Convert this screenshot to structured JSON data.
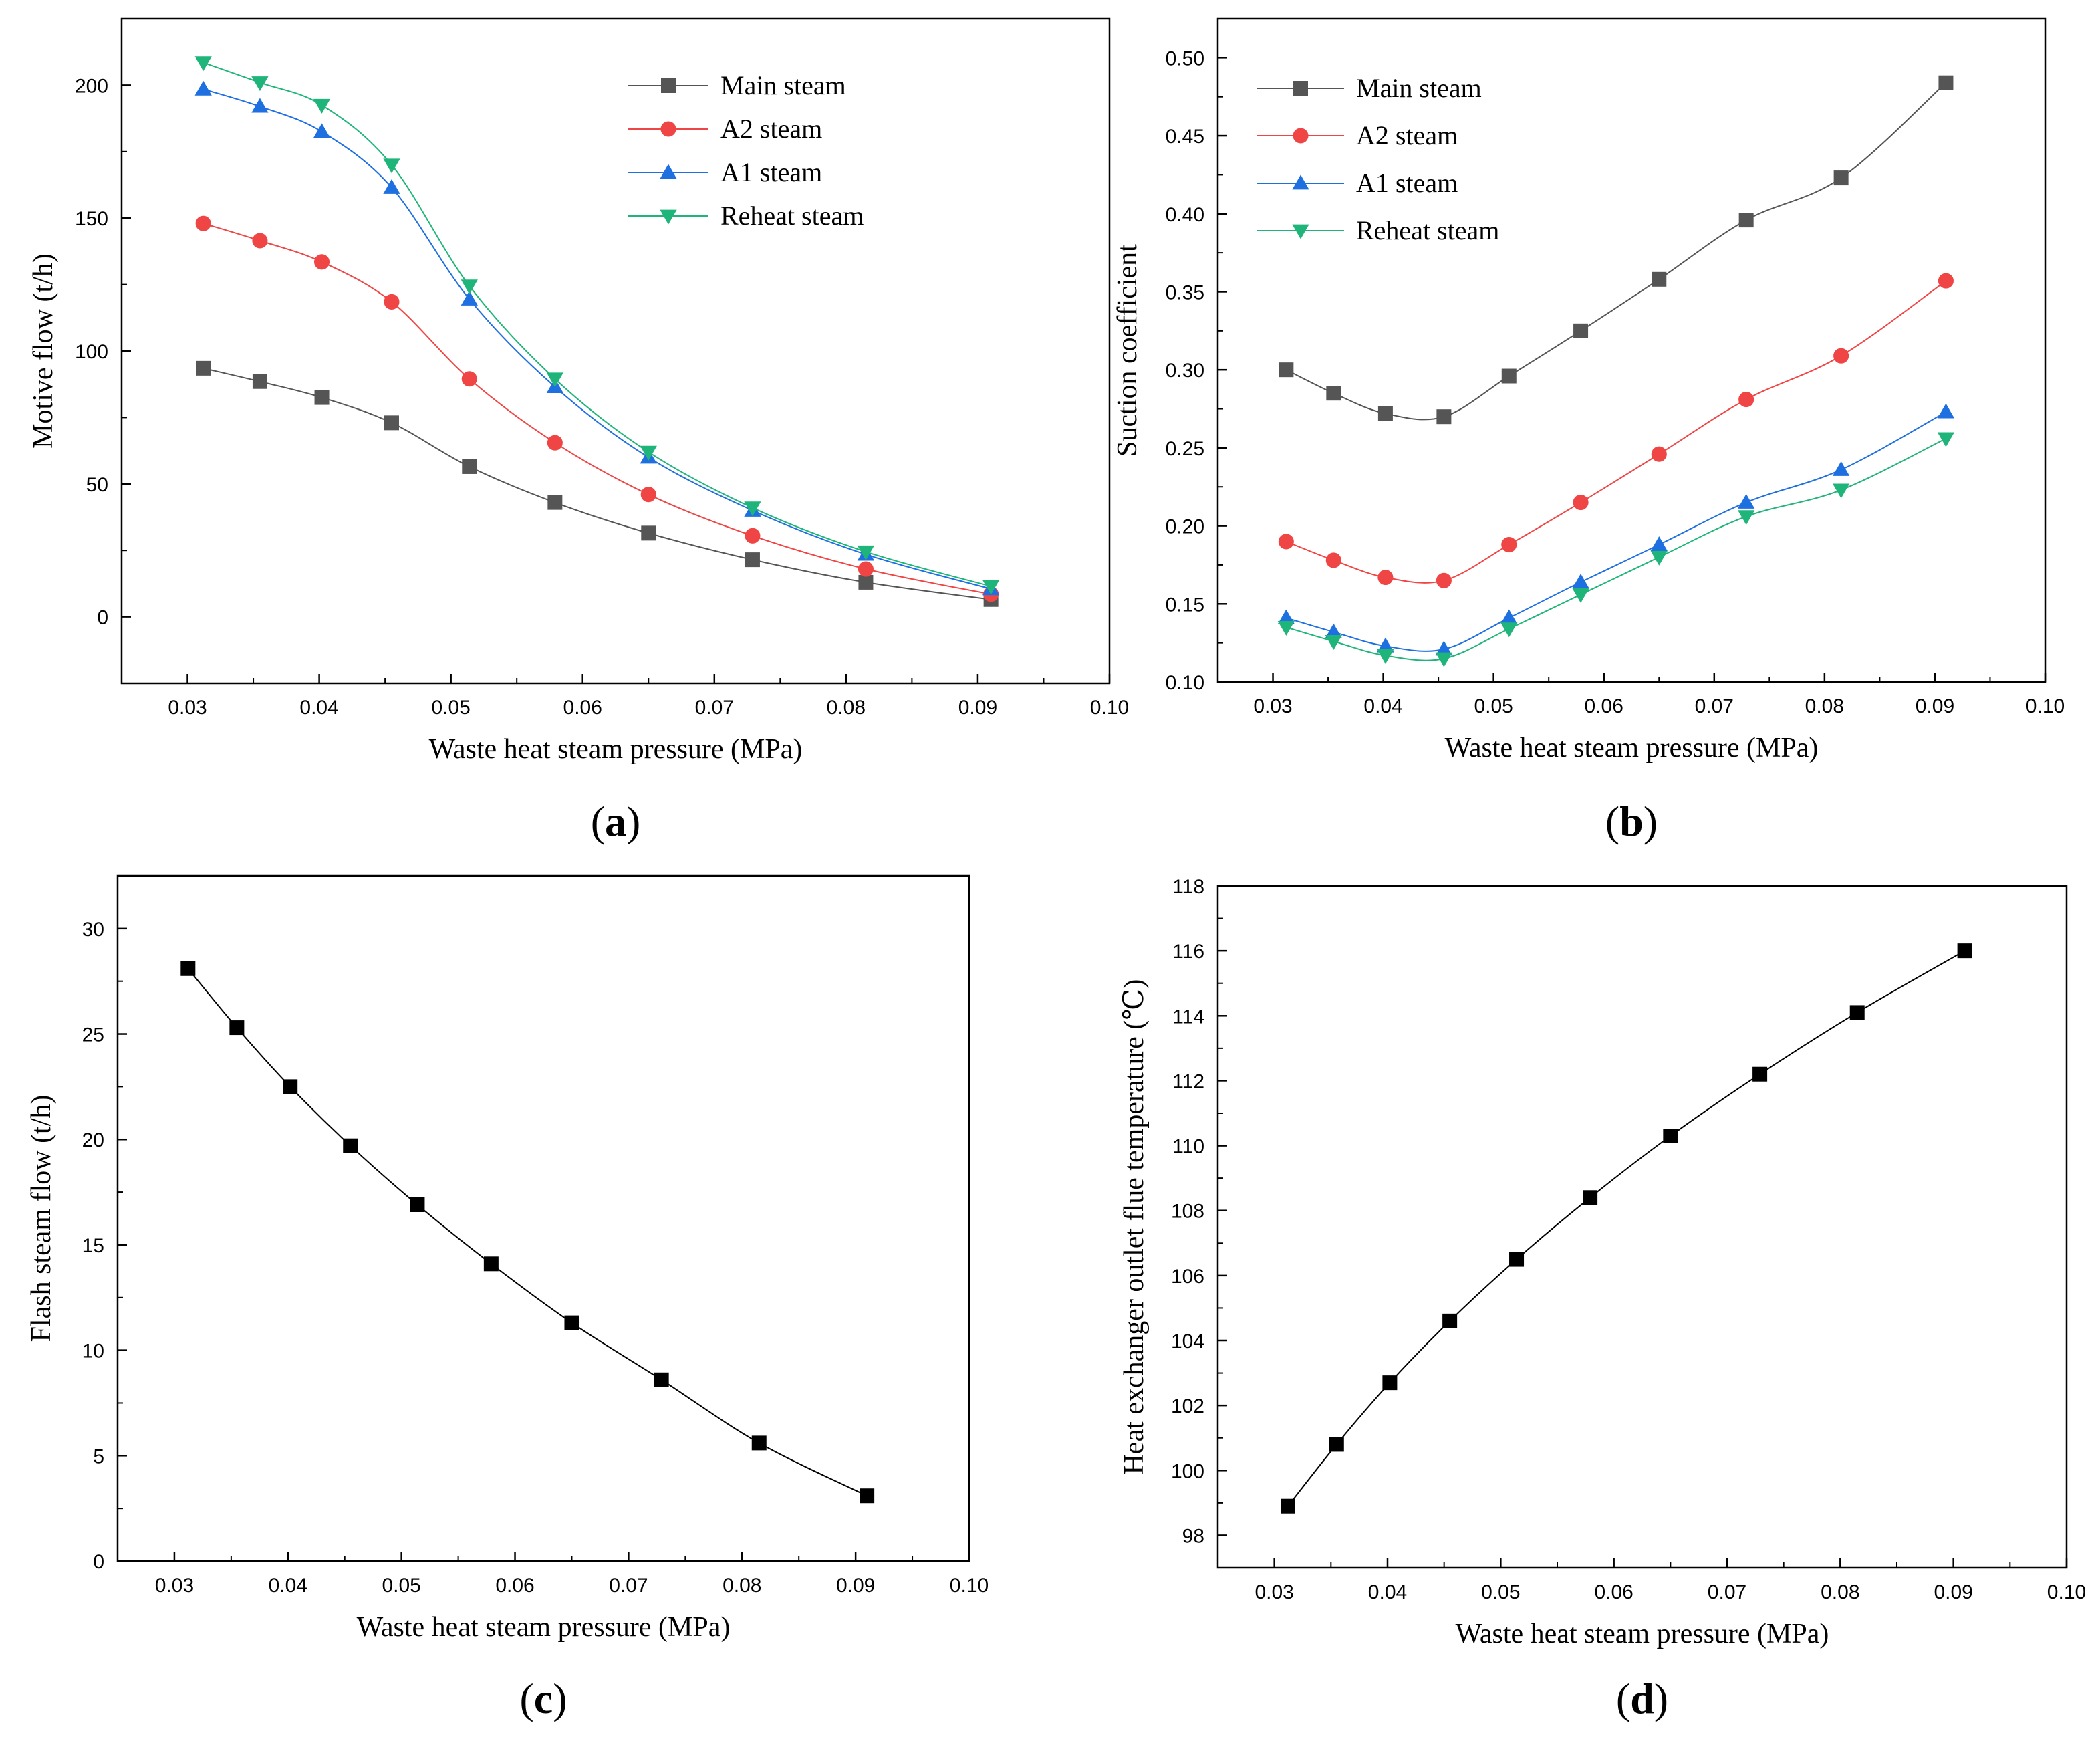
{
  "colors": {
    "main": "#555555",
    "a2": "#f04545",
    "a1": "#1e6fe0",
    "reheat": "#1fb57a",
    "black": "#000000"
  },
  "chart_data": [
    {
      "id": "a",
      "panel_label": "a",
      "type": "line",
      "xlabel": "Waste heat steam pressure (MPa)",
      "ylabel": "Motive flow (t/h)",
      "xlim": [
        0.025,
        0.1
      ],
      "ylim": [
        -25,
        225
      ],
      "xticks": [
        0.03,
        0.04,
        0.05,
        0.06,
        0.07,
        0.08,
        0.09,
        0.1
      ],
      "xtick_labels": [
        "0.03",
        "0.04",
        "0.05",
        "0.06",
        "0.07",
        "0.08",
        "0.09",
        "0.10"
      ],
      "yticks": [
        0,
        50,
        100,
        150,
        200
      ],
      "ytick_labels": [
        "0",
        "50",
        "100",
        "150",
        "200"
      ],
      "legend_position": "top-right",
      "x": [
        0.0312,
        0.0355,
        0.0402,
        0.0455,
        0.0514,
        0.0579,
        0.065,
        0.0729,
        0.0815,
        0.091
      ],
      "series": [
        {
          "name": "Main steam",
          "marker": "square",
          "color_key": "main",
          "values": [
            93.5,
            88.5,
            82.5,
            73,
            56.5,
            43,
            31.5,
            21.5,
            13,
            6.5
          ]
        },
        {
          "name": "A2 steam",
          "marker": "circle",
          "color_key": "a2",
          "values": [
            148,
            141.5,
            133.5,
            118.5,
            89.5,
            65.5,
            46,
            30.5,
            18,
            8.5
          ]
        },
        {
          "name": "A1 steam",
          "marker": "triangle-up",
          "color_key": "a1",
          "values": [
            198.5,
            192,
            182.5,
            161.5,
            119.5,
            86.5,
            60,
            40,
            23.5,
            10.5
          ]
        },
        {
          "name": "Reheat steam",
          "marker": "triangle-down",
          "color_key": "reheat",
          "values": [
            208.5,
            201,
            192.5,
            170,
            124.5,
            89.5,
            62,
            41,
            24.5,
            11.5
          ]
        }
      ]
    },
    {
      "id": "b",
      "panel_label": "b",
      "type": "line",
      "xlabel": "Waste heat steam pressure (MPa)",
      "ylabel": "Suction coefficient",
      "xlim": [
        0.025,
        0.1
      ],
      "ylim": [
        0.1,
        0.525
      ],
      "xticks": [
        0.03,
        0.04,
        0.05,
        0.06,
        0.07,
        0.08,
        0.09,
        0.1
      ],
      "xtick_labels": [
        "0.03",
        "0.04",
        "0.05",
        "0.06",
        "0.07",
        "0.08",
        "0.09",
        "0.10"
      ],
      "yticks": [
        0.1,
        0.15,
        0.2,
        0.25,
        0.3,
        0.35,
        0.4,
        0.45,
        0.5
      ],
      "ytick_labels": [
        "0.10",
        "0.15",
        "0.20",
        "0.25",
        "0.30",
        "0.35",
        "0.40",
        "0.45",
        "0.50"
      ],
      "legend_position": "top-left",
      "x": [
        0.0312,
        0.0355,
        0.0402,
        0.0455,
        0.0514,
        0.0579,
        0.065,
        0.0729,
        0.0815,
        0.091
      ],
      "series": [
        {
          "name": "Main steam",
          "marker": "square",
          "color_key": "main",
          "values": [
            0.3,
            0.285,
            0.272,
            0.27,
            0.296,
            0.325,
            0.358,
            0.396,
            0.423,
            0.484
          ]
        },
        {
          "name": "A2 steam",
          "marker": "circle",
          "color_key": "a2",
          "values": [
            0.19,
            0.178,
            0.167,
            0.165,
            0.188,
            0.215,
            0.246,
            0.281,
            0.309,
            0.357
          ]
        },
        {
          "name": "A1 steam",
          "marker": "triangle-up",
          "color_key": "a1",
          "values": [
            0.141,
            0.132,
            0.123,
            0.121,
            0.141,
            0.164,
            0.188,
            0.215,
            0.236,
            0.273
          ]
        },
        {
          "name": "Reheat steam",
          "marker": "triangle-down",
          "color_key": "reheat",
          "values": [
            0.135,
            0.126,
            0.117,
            0.115,
            0.134,
            0.156,
            0.18,
            0.206,
            0.223,
            0.256
          ]
        }
      ]
    },
    {
      "id": "c",
      "panel_label": "c",
      "type": "line",
      "xlabel": "Waste heat steam pressure (MPa)",
      "ylabel": "Flash steam flow (t/h)",
      "xlim": [
        0.025,
        0.1
      ],
      "ylim": [
        0,
        32.5
      ],
      "xticks": [
        0.03,
        0.04,
        0.05,
        0.06,
        0.07,
        0.08,
        0.09,
        0.1
      ],
      "xtick_labels": [
        "0.03",
        "0.04",
        "0.05",
        "0.06",
        "0.07",
        "0.08",
        "0.09",
        "0.10"
      ],
      "yticks": [
        0,
        5,
        10,
        15,
        20,
        25,
        30
      ],
      "ytick_labels": [
        "0",
        "5",
        "10",
        "15",
        "20",
        "25",
        "30"
      ],
      "x": [
        0.0312,
        0.0355,
        0.0402,
        0.0455,
        0.0514,
        0.0579,
        0.065,
        0.0729,
        0.0815,
        0.091
      ],
      "series": [
        {
          "name": "Flash steam flow",
          "marker": "square",
          "color_key": "black",
          "values": [
            28.1,
            25.3,
            22.5,
            19.7,
            16.9,
            14.1,
            11.3,
            8.6,
            5.6,
            3.1
          ]
        }
      ]
    },
    {
      "id": "d",
      "panel_label": "d",
      "type": "line",
      "xlabel": "Waste heat steam pressure (MPa)",
      "ylabel": "Heat exchanger outlet flue temperature (℃)",
      "xlim": [
        0.025,
        0.1
      ],
      "ylim": [
        97,
        118
      ],
      "xticks": [
        0.03,
        0.04,
        0.05,
        0.06,
        0.07,
        0.08,
        0.09,
        0.1
      ],
      "xtick_labels": [
        "0.03",
        "0.04",
        "0.05",
        "0.06",
        "0.07",
        "0.08",
        "0.09",
        "0.10"
      ],
      "yticks": [
        98,
        100,
        102,
        104,
        106,
        108,
        110,
        112,
        114,
        116,
        118
      ],
      "ytick_labels": [
        "98",
        "100",
        "102",
        "104",
        "106",
        "108",
        "110",
        "112",
        "114",
        "116",
        "118"
      ],
      "x": [
        0.0312,
        0.0355,
        0.0402,
        0.0455,
        0.0514,
        0.0579,
        0.065,
        0.0729,
        0.0815,
        0.091
      ],
      "series": [
        {
          "name": "Outlet flue temperature",
          "marker": "square",
          "color_key": "black",
          "values": [
            98.9,
            100.8,
            102.7,
            104.6,
            106.5,
            108.4,
            110.3,
            112.2,
            114.1,
            116.0
          ]
        }
      ]
    }
  ]
}
